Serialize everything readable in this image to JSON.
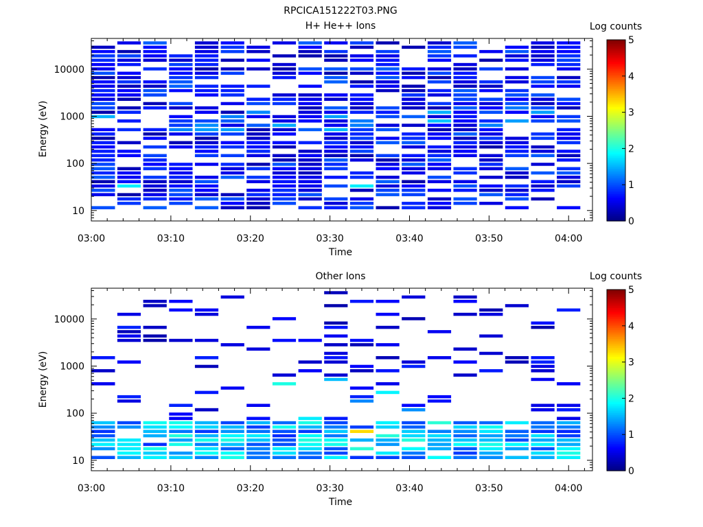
{
  "figure_title": "RPCICA151222T03.PNG",
  "chart_data": [
    {
      "type": "heatmap",
      "title": "H+ He++ Ions",
      "xlabel": "Time",
      "ylabel": "Energy (eV)",
      "yscale": "log",
      "ylim": [
        6,
        45000
      ],
      "xlim": [
        "03:00",
        "04:03"
      ],
      "xticks": [
        "03:00",
        "03:10",
        "03:20",
        "03:30",
        "03:40",
        "03:50",
        "04:00"
      ],
      "yticks": [
        "10",
        "100",
        "1000",
        "10000"
      ],
      "time_bins": [
        "03:01:30",
        "03:04:45",
        "03:08:00",
        "03:11:15",
        "03:14:30",
        "03:17:45",
        "03:21:00",
        "03:24:15",
        "03:27:30",
        "03:30:45",
        "03:34:00",
        "03:37:15",
        "03:40:30",
        "03:43:45",
        "03:47:00",
        "03:50:15",
        "03:53:30",
        "03:56:45",
        "04:00:00"
      ],
      "energy_bins": [
        10,
        12.4,
        15.3,
        19,
        23.4,
        29,
        35.8,
        44.3,
        54.7,
        67.6,
        83.6,
        103,
        128,
        158,
        195,
        241,
        298,
        368,
        455,
        562,
        695,
        860,
        1063,
        1314,
        1624,
        2007,
        2481,
        3067,
        3791,
        4686,
        5792,
        7159,
        8849,
        10938,
        13520,
        16711,
        20656,
        25532,
        31558,
        39007
      ],
      "colorbar": {
        "label": "Log counts",
        "min": 0,
        "max": 5,
        "ticks": [
          "0",
          "1",
          "2",
          "3",
          "4",
          "5"
        ]
      },
      "values_note": "",
      "values": []
    },
    {
      "type": "heatmap",
      "title": "Other Ions",
      "xlabel": "Time",
      "ylabel": "Energy (eV)",
      "yscale": "log",
      "ylim": [
        6,
        45000
      ],
      "xlim": [
        "03:00",
        "04:03"
      ],
      "xticks": [
        "03:00",
        "03:10",
        "03:20",
        "03:30",
        "03:40",
        "03:50",
        "04:00"
      ],
      "yticks": [
        "10",
        "100",
        "1000",
        "10000"
      ],
      "colorbar": {
        "label": "Log counts",
        "min": 0,
        "max": 5,
        "ticks": [
          "0",
          "1",
          "2",
          "3",
          "4",
          "5"
        ]
      },
      "values": []
    }
  ]
}
